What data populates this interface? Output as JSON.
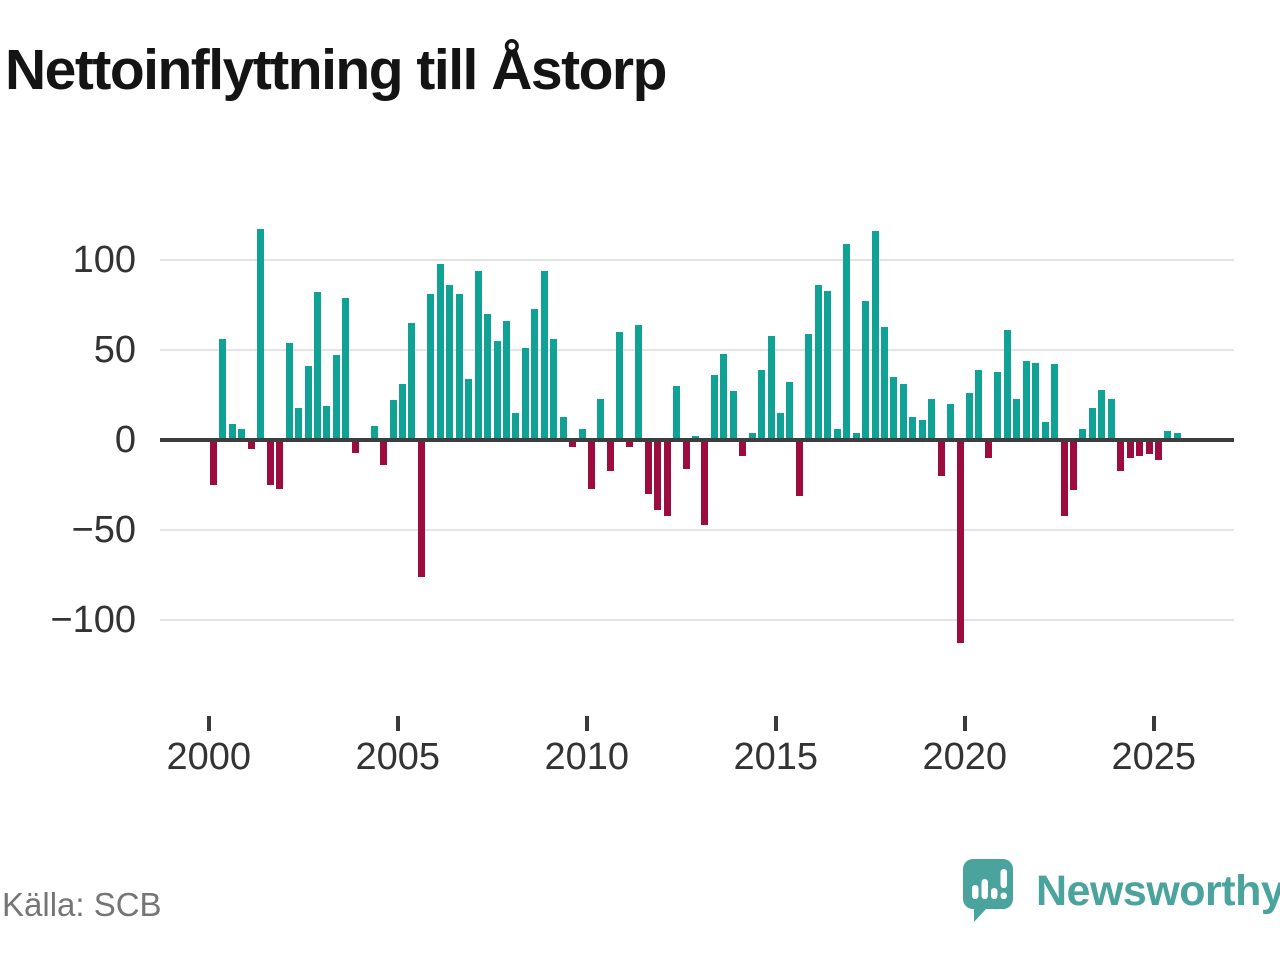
{
  "title": "Nettoinflyttning till Åstorp",
  "source": "Källa: SCB",
  "branding": {
    "name": "Newsworthy",
    "logo_icon": "speech-bubble-bar-chart-icon"
  },
  "colors": {
    "positive_bar": "#11a296",
    "negative_bar": "#9c0c3e",
    "grid": "#e3e3e3",
    "zero_axis": "#3d3d3d",
    "tick_text": "#333333",
    "title_text": "#141414",
    "source_text": "#757575",
    "brand": "#4aa39c",
    "background": "#ffffff"
  },
  "chart_data": {
    "type": "bar",
    "title": "Nettoinflyttning till Åstorp",
    "frequency": "quarterly",
    "start_period": "2000Q1",
    "end_period": "2025Q3",
    "x_tick_labels": [
      "2000",
      "2005",
      "2010",
      "2015",
      "2020",
      "2025"
    ],
    "y_ticks": [
      {
        "label": "100",
        "value": 100
      },
      {
        "label": "50",
        "value": 50
      },
      {
        "label": "0",
        "value": 0
      },
      {
        "label": "−50",
        "value": -50
      },
      {
        "label": "−100",
        "value": -100
      }
    ],
    "ylim": [
      -122,
      122
    ],
    "grid": true,
    "legend": false,
    "values": [
      -25,
      56,
      9,
      6,
      -5,
      117,
      -25,
      -27,
      54,
      18,
      41,
      82,
      19,
      47,
      79,
      -7,
      0,
      8,
      -14,
      22,
      31,
      65,
      -76,
      81,
      98,
      86,
      81,
      34,
      94,
      70,
      55,
      66,
      15,
      51,
      73,
      94,
      56,
      13,
      -4,
      6,
      -27,
      23,
      -17,
      60,
      -4,
      64,
      -30,
      -39,
      -42,
      30,
      -16,
      2,
      -47,
      36,
      48,
      27,
      -9,
      4,
      39,
      58,
      15,
      32,
      -31,
      59,
      86,
      83,
      6,
      109,
      4,
      77,
      116,
      63,
      35,
      31,
      13,
      11,
      23,
      -20,
      20,
      -113,
      26,
      39,
      -10,
      38,
      61,
      23,
      44,
      43,
      10,
      42,
      -42,
      -28,
      6,
      18,
      28,
      23,
      -17,
      -10,
      -9,
      -8,
      -11,
      5,
      4
    ]
  }
}
